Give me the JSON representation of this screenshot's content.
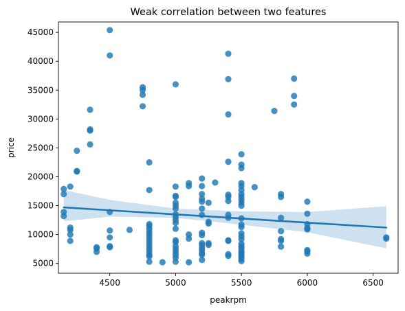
{
  "chart_data": {
    "type": "scatter",
    "title": "Weak correlation between two features",
    "xlabel": "peakrpm",
    "ylabel": "price",
    "xlim": [
      4110,
      6690
    ],
    "ylim": [
      3300,
      46800
    ],
    "grid": false,
    "xticks": [
      {
        "value": 4500,
        "label": "4500"
      },
      {
        "value": 5000,
        "label": "5000"
      },
      {
        "value": 5500,
        "label": "5500"
      },
      {
        "value": 6000,
        "label": "6000"
      },
      {
        "value": 6500,
        "label": "6500"
      }
    ],
    "yticks": [
      {
        "value": 5000,
        "label": "5000"
      },
      {
        "value": 10000,
        "label": "10000"
      },
      {
        "value": 15000,
        "label": "15000"
      },
      {
        "value": 20000,
        "label": "20000"
      },
      {
        "value": 25000,
        "label": "25000"
      },
      {
        "value": 30000,
        "label": "30000"
      },
      {
        "value": 35000,
        "label": "35000"
      },
      {
        "value": 40000,
        "label": "40000"
      },
      {
        "value": 45000,
        "label": "45000"
      }
    ],
    "points": [
      {
        "x": 4150,
        "y": 17900
      },
      {
        "x": 4150,
        "y": 17000
      },
      {
        "x": 4150,
        "y": 13900
      },
      {
        "x": 4150,
        "y": 13200
      },
      {
        "x": 4200,
        "y": 18300
      },
      {
        "x": 4200,
        "y": 11200
      },
      {
        "x": 4200,
        "y": 10800
      },
      {
        "x": 4200,
        "y": 10000
      },
      {
        "x": 4200,
        "y": 8900
      },
      {
        "x": 4250,
        "y": 24500
      },
      {
        "x": 4250,
        "y": 21000
      },
      {
        "x": 4250,
        "y": 20900
      },
      {
        "x": 4350,
        "y": 31600
      },
      {
        "x": 4350,
        "y": 28200
      },
      {
        "x": 4350,
        "y": 28000
      },
      {
        "x": 4350,
        "y": 25600
      },
      {
        "x": 4400,
        "y": 7800
      },
      {
        "x": 4400,
        "y": 7600
      },
      {
        "x": 4400,
        "y": 7000
      },
      {
        "x": 4500,
        "y": 45400
      },
      {
        "x": 4500,
        "y": 41000
      },
      {
        "x": 4500,
        "y": 13900
      },
      {
        "x": 4500,
        "y": 10700
      },
      {
        "x": 4500,
        "y": 9500
      },
      {
        "x": 4500,
        "y": 8000
      },
      {
        "x": 4500,
        "y": 7800
      },
      {
        "x": 4650,
        "y": 10800
      },
      {
        "x": 4750,
        "y": 35500
      },
      {
        "x": 4750,
        "y": 35000
      },
      {
        "x": 4750,
        "y": 34200
      },
      {
        "x": 4750,
        "y": 32200
      },
      {
        "x": 4800,
        "y": 22500
      },
      {
        "x": 4800,
        "y": 17700
      },
      {
        "x": 4800,
        "y": 11800
      },
      {
        "x": 4800,
        "y": 11500
      },
      {
        "x": 4800,
        "y": 11000
      },
      {
        "x": 4800,
        "y": 10500
      },
      {
        "x": 4800,
        "y": 10000
      },
      {
        "x": 4800,
        "y": 9500
      },
      {
        "x": 4800,
        "y": 9000
      },
      {
        "x": 4800,
        "y": 8500
      },
      {
        "x": 4800,
        "y": 8000
      },
      {
        "x": 4800,
        "y": 7500
      },
      {
        "x": 4800,
        "y": 7000
      },
      {
        "x": 4800,
        "y": 6500
      },
      {
        "x": 4800,
        "y": 6200
      },
      {
        "x": 4800,
        "y": 5300
      },
      {
        "x": 4900,
        "y": 5200
      },
      {
        "x": 5000,
        "y": 36000
      },
      {
        "x": 5000,
        "y": 18300
      },
      {
        "x": 5000,
        "y": 16700
      },
      {
        "x": 5000,
        "y": 16500
      },
      {
        "x": 5000,
        "y": 15500
      },
      {
        "x": 5000,
        "y": 15000
      },
      {
        "x": 5000,
        "y": 14500
      },
      {
        "x": 5000,
        "y": 13500
      },
      {
        "x": 5000,
        "y": 13000
      },
      {
        "x": 5000,
        "y": 12500
      },
      {
        "x": 5000,
        "y": 12000
      },
      {
        "x": 5000,
        "y": 11000
      },
      {
        "x": 5000,
        "y": 9000
      },
      {
        "x": 5000,
        "y": 8700
      },
      {
        "x": 5000,
        "y": 8000
      },
      {
        "x": 5000,
        "y": 7500
      },
      {
        "x": 5000,
        "y": 7000
      },
      {
        "x": 5000,
        "y": 6500
      },
      {
        "x": 5000,
        "y": 6000
      },
      {
        "x": 5000,
        "y": 5300
      },
      {
        "x": 5100,
        "y": 18900
      },
      {
        "x": 5100,
        "y": 18400
      },
      {
        "x": 5100,
        "y": 10000
      },
      {
        "x": 5100,
        "y": 9300
      },
      {
        "x": 5100,
        "y": 5200
      },
      {
        "x": 5200,
        "y": 19700
      },
      {
        "x": 5200,
        "y": 18400
      },
      {
        "x": 5200,
        "y": 17000
      },
      {
        "x": 5200,
        "y": 16200
      },
      {
        "x": 5200,
        "y": 15700
      },
      {
        "x": 5200,
        "y": 14500
      },
      {
        "x": 5200,
        "y": 13400
      },
      {
        "x": 5200,
        "y": 10300
      },
      {
        "x": 5200,
        "y": 9900
      },
      {
        "x": 5200,
        "y": 8500
      },
      {
        "x": 5200,
        "y": 8200
      },
      {
        "x": 5200,
        "y": 7700
      },
      {
        "x": 5200,
        "y": 7300
      },
      {
        "x": 5200,
        "y": 6800
      },
      {
        "x": 5200,
        "y": 6500
      },
      {
        "x": 5200,
        "y": 5600
      },
      {
        "x": 5250,
        "y": 15500
      },
      {
        "x": 5250,
        "y": 12200
      },
      {
        "x": 5250,
        "y": 11900
      },
      {
        "x": 5250,
        "y": 8500
      },
      {
        "x": 5250,
        "y": 8200
      },
      {
        "x": 5300,
        "y": 19000
      },
      {
        "x": 5400,
        "y": 41300
      },
      {
        "x": 5400,
        "y": 36900
      },
      {
        "x": 5400,
        "y": 30800
      },
      {
        "x": 5400,
        "y": 22600
      },
      {
        "x": 5400,
        "y": 16900
      },
      {
        "x": 5400,
        "y": 16500
      },
      {
        "x": 5400,
        "y": 15800
      },
      {
        "x": 5400,
        "y": 13400
      },
      {
        "x": 5400,
        "y": 12900
      },
      {
        "x": 5400,
        "y": 9000
      },
      {
        "x": 5400,
        "y": 8900
      },
      {
        "x": 5400,
        "y": 6600
      },
      {
        "x": 5400,
        "y": 6300
      },
      {
        "x": 5500,
        "y": 23900
      },
      {
        "x": 5500,
        "y": 22100
      },
      {
        "x": 5500,
        "y": 21500
      },
      {
        "x": 5500,
        "y": 18900
      },
      {
        "x": 5500,
        "y": 18400
      },
      {
        "x": 5500,
        "y": 17700
      },
      {
        "x": 5500,
        "y": 17000
      },
      {
        "x": 5500,
        "y": 16500
      },
      {
        "x": 5500,
        "y": 16000
      },
      {
        "x": 5500,
        "y": 15500
      },
      {
        "x": 5500,
        "y": 15000
      },
      {
        "x": 5500,
        "y": 12800
      },
      {
        "x": 5500,
        "y": 11700
      },
      {
        "x": 5500,
        "y": 11300
      },
      {
        "x": 5500,
        "y": 10200
      },
      {
        "x": 5500,
        "y": 9700
      },
      {
        "x": 5500,
        "y": 9200
      },
      {
        "x": 5500,
        "y": 8400
      },
      {
        "x": 5500,
        "y": 8000
      },
      {
        "x": 5500,
        "y": 7700
      },
      {
        "x": 5500,
        "y": 7200
      },
      {
        "x": 5500,
        "y": 6900
      },
      {
        "x": 5500,
        "y": 6500
      },
      {
        "x": 5500,
        "y": 6200
      },
      {
        "x": 5500,
        "y": 5800
      },
      {
        "x": 5500,
        "y": 5400
      },
      {
        "x": 5600,
        "y": 18200
      },
      {
        "x": 5750,
        "y": 31400
      },
      {
        "x": 5800,
        "y": 17000
      },
      {
        "x": 5800,
        "y": 16500
      },
      {
        "x": 5800,
        "y": 12900
      },
      {
        "x": 5800,
        "y": 10600
      },
      {
        "x": 5800,
        "y": 9200
      },
      {
        "x": 5800,
        "y": 8900
      },
      {
        "x": 5800,
        "y": 7900
      },
      {
        "x": 5900,
        "y": 37000
      },
      {
        "x": 5900,
        "y": 34000
      },
      {
        "x": 5900,
        "y": 32500
      },
      {
        "x": 6000,
        "y": 15700
      },
      {
        "x": 6000,
        "y": 13600
      },
      {
        "x": 6000,
        "y": 11800
      },
      {
        "x": 6000,
        "y": 11100
      },
      {
        "x": 6000,
        "y": 10900
      },
      {
        "x": 6000,
        "y": 7300
      },
      {
        "x": 6000,
        "y": 7100
      },
      {
        "x": 6000,
        "y": 6700
      },
      {
        "x": 6600,
        "y": 9500
      },
      {
        "x": 6600,
        "y": 9300
      }
    ],
    "regression": {
      "x": [
        4150,
        6600
      ],
      "y": [
        14700,
        11200
      ],
      "ci_x": [
        4150,
        4500,
        5000,
        5500,
        6000,
        6600
      ],
      "ci_lower": [
        12300,
        13100,
        12900,
        11700,
        10400,
        7600
      ],
      "ci_upper": [
        17700,
        16000,
        14500,
        14000,
        13900,
        14900
      ]
    },
    "colors": {
      "points": "#1f77b4",
      "line": "#1f77b4",
      "band": "#c6dcee"
    }
  }
}
